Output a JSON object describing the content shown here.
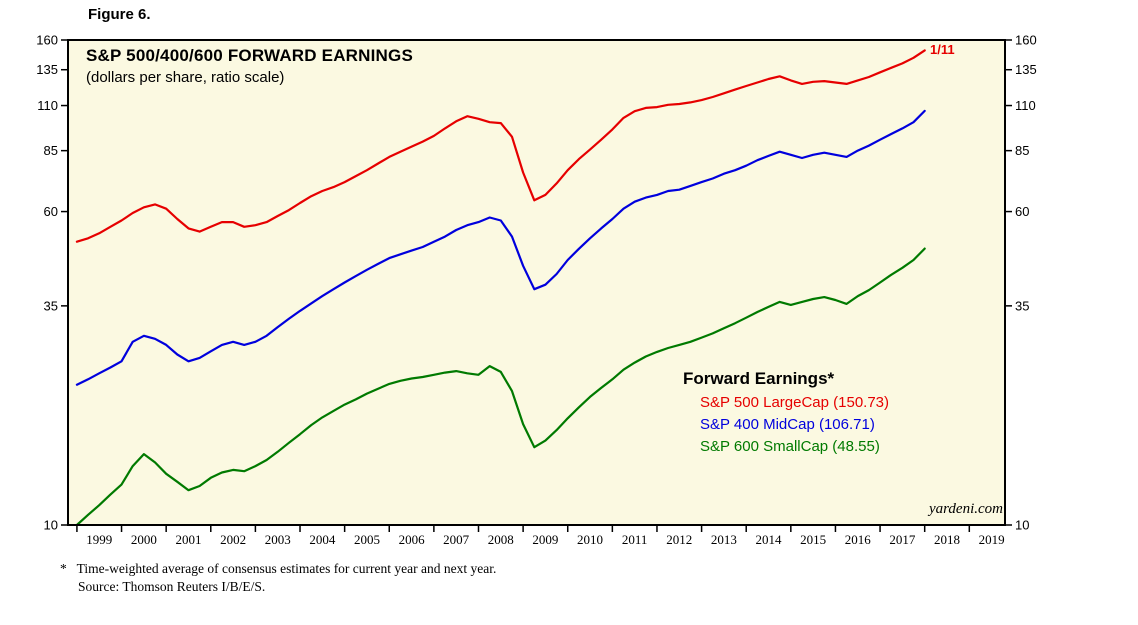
{
  "figure_label": "Figure 6.",
  "chart": {
    "title": "S&P 500/400/600 FORWARD EARNINGS",
    "subtitle": "(dollars per share, ratio scale)",
    "legend_title": "Forward Earnings*",
    "watermark": "yardeni.com"
  },
  "footnote": {
    "line1": "*   Time-weighted average of consensus estimates for current year and next year.",
    "line2": "Source: Thomson Reuters I/B/E/S."
  },
  "colors": {
    "plot_bg": "#fbf9e1",
    "axis": "#000000"
  },
  "chart_data": {
    "type": "line",
    "title": "S&P 500/400/600 FORWARD EARNINGS",
    "subtitle": "(dollars per share, ratio scale)",
    "y_scale": "log",
    "ylim": [
      10,
      160
    ],
    "y_ticks": [
      10,
      35,
      60,
      85,
      110,
      135,
      160
    ],
    "xlim": [
      1998.8,
      2019.8
    ],
    "x_year_ticks": [
      1999,
      2000,
      2001,
      2002,
      2003,
      2004,
      2005,
      2006,
      2007,
      2008,
      2009,
      2010,
      2011,
      2012,
      2013,
      2014,
      2015,
      2016,
      2017,
      2018,
      2019
    ],
    "x_tick_labels": [
      "1999",
      "2000",
      "2001",
      "2002",
      "2003",
      "2004",
      "2005",
      "2006",
      "2007",
      "2008",
      "2009",
      "2010",
      "2011",
      "2012",
      "2013",
      "2014",
      "2015",
      "2016",
      "2017",
      "2018",
      "2019"
    ],
    "grid": false,
    "legend_position": "inside-right-lower",
    "annotation": {
      "text": "1/11",
      "color": "#e60000",
      "x": 2018.0,
      "y": 150.73
    },
    "x": [
      1999.0,
      1999.25,
      1999.5,
      1999.75,
      2000.0,
      2000.25,
      2000.5,
      2000.75,
      2001.0,
      2001.25,
      2001.5,
      2001.75,
      2002.0,
      2002.25,
      2002.5,
      2002.75,
      2003.0,
      2003.25,
      2003.5,
      2003.75,
      2004.0,
      2004.25,
      2004.5,
      2004.75,
      2005.0,
      2005.25,
      2005.5,
      2005.75,
      2006.0,
      2006.25,
      2006.5,
      2006.75,
      2007.0,
      2007.25,
      2007.5,
      2007.75,
      2008.0,
      2008.25,
      2008.5,
      2008.75,
      2009.0,
      2009.25,
      2009.5,
      2009.75,
      2010.0,
      2010.25,
      2010.5,
      2010.75,
      2011.0,
      2011.25,
      2011.5,
      2011.75,
      2012.0,
      2012.25,
      2012.5,
      2012.75,
      2013.0,
      2013.25,
      2013.5,
      2013.75,
      2014.0,
      2014.25,
      2014.5,
      2014.75,
      2015.0,
      2015.25,
      2015.5,
      2015.75,
      2016.0,
      2016.25,
      2016.5,
      2016.75,
      2017.0,
      2017.25,
      2017.5,
      2017.75,
      2018.0
    ],
    "series": [
      {
        "name": "S&P 500 LargeCap (150.73)",
        "color": "#e60000",
        "last_value": 150.73,
        "values": [
          50.5,
          51.5,
          53.0,
          55.0,
          57.0,
          59.5,
          61.5,
          62.5,
          61.0,
          57.5,
          54.5,
          53.5,
          55.0,
          56.5,
          56.5,
          55.0,
          55.5,
          56.5,
          58.5,
          60.5,
          63.0,
          65.5,
          67.5,
          69.0,
          71.0,
          73.5,
          76.0,
          79.0,
          82.0,
          84.5,
          87.0,
          89.5,
          92.5,
          96.5,
          100.5,
          103.5,
          102.0,
          100.0,
          99.5,
          92.0,
          75.0,
          64.0,
          66.0,
          70.5,
          76.0,
          81.0,
          85.5,
          90.5,
          96.0,
          102.5,
          106.5,
          108.5,
          109.0,
          110.5,
          111.0,
          112.0,
          113.5,
          115.5,
          118.0,
          120.5,
          123.0,
          125.5,
          128.0,
          130.0,
          127.0,
          124.5,
          126.0,
          126.5,
          125.5,
          124.5,
          127.0,
          129.5,
          133.0,
          136.5,
          140.0,
          144.5,
          150.73
        ]
      },
      {
        "name": "S&P 400 MidCap (106.71)",
        "color": "#0000dd",
        "last_value": 106.71,
        "values": [
          22.3,
          23.0,
          23.8,
          24.6,
          25.5,
          28.5,
          29.5,
          29.0,
          28.0,
          26.5,
          25.5,
          26.0,
          27.0,
          28.0,
          28.5,
          28.0,
          28.5,
          29.5,
          31.0,
          32.5,
          34.0,
          35.5,
          37.0,
          38.5,
          40.0,
          41.5,
          43.0,
          44.5,
          46.0,
          47.0,
          48.0,
          49.0,
          50.5,
          52.0,
          54.0,
          55.5,
          56.5,
          58.0,
          57.0,
          52.0,
          44.0,
          38.5,
          39.5,
          42.0,
          45.5,
          48.5,
          51.5,
          54.5,
          57.5,
          61.0,
          63.5,
          65.0,
          66.0,
          67.5,
          68.0,
          69.5,
          71.0,
          72.5,
          74.5,
          76.0,
          78.0,
          80.5,
          82.5,
          84.5,
          83.0,
          81.5,
          83.0,
          84.0,
          83.0,
          82.0,
          85.0,
          87.5,
          90.5,
          93.5,
          96.5,
          100.0,
          106.71
        ]
      },
      {
        "name": "S&P 600 SmallCap (48.55)",
        "color": "#007a00",
        "last_value": 48.55,
        "values": [
          10.0,
          10.6,
          11.2,
          11.9,
          12.6,
          14.0,
          15.0,
          14.3,
          13.4,
          12.8,
          12.2,
          12.5,
          13.1,
          13.5,
          13.7,
          13.6,
          14.0,
          14.5,
          15.2,
          16.0,
          16.8,
          17.7,
          18.5,
          19.2,
          19.9,
          20.5,
          21.2,
          21.8,
          22.4,
          22.8,
          23.1,
          23.3,
          23.6,
          23.9,
          24.1,
          23.8,
          23.6,
          24.8,
          24.0,
          21.5,
          17.8,
          15.6,
          16.2,
          17.2,
          18.4,
          19.6,
          20.8,
          21.9,
          23.0,
          24.3,
          25.3,
          26.2,
          26.9,
          27.5,
          28.0,
          28.5,
          29.2,
          29.9,
          30.8,
          31.7,
          32.7,
          33.8,
          34.8,
          35.8,
          35.2,
          35.8,
          36.4,
          36.8,
          36.2,
          35.4,
          37.0,
          38.3,
          40.0,
          41.8,
          43.5,
          45.5,
          48.55
        ]
      }
    ]
  }
}
